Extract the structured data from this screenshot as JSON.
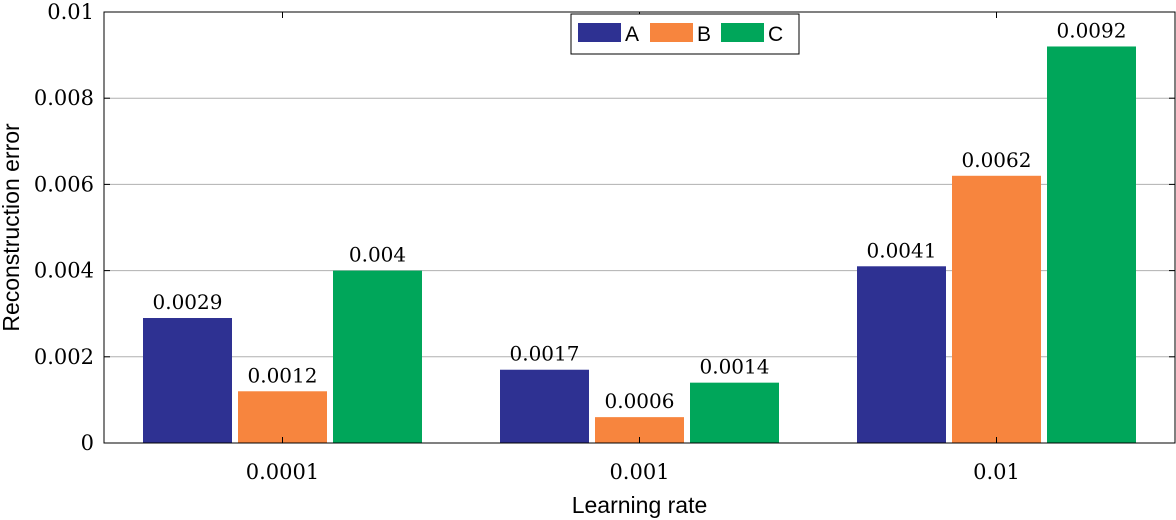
{
  "chart_data": {
    "type": "bar",
    "title": "",
    "xlabel": "Learning rate",
    "ylabel": "Reconstruction error",
    "categories": [
      "0.0001",
      "0.001",
      "0.01"
    ],
    "series": [
      {
        "name": "A",
        "color": "#2e3192",
        "values": [
          0.0029,
          0.0017,
          0.0041
        ],
        "labels": [
          "0.0029",
          "0.0017",
          "0.0041"
        ]
      },
      {
        "name": "B",
        "color": "#f7853e",
        "values": [
          0.0012,
          0.0006,
          0.0062
        ],
        "labels": [
          "0.0012",
          "0.0006",
          "0.0062"
        ]
      },
      {
        "name": "C",
        "color": "#00a65a",
        "values": [
          0.004,
          0.0014,
          0.0092
        ],
        "labels": [
          "0.004",
          "0.0014",
          "0.0092"
        ]
      }
    ],
    "ylim": [
      0,
      0.01
    ],
    "yticks": [
      0,
      0.002,
      0.004,
      0.006,
      0.008,
      0.01
    ],
    "ytick_labels": [
      "0",
      "0.002",
      "0.004",
      "0.006",
      "0.008",
      "0.01"
    ],
    "grid": true,
    "legend_position": "top-center"
  }
}
